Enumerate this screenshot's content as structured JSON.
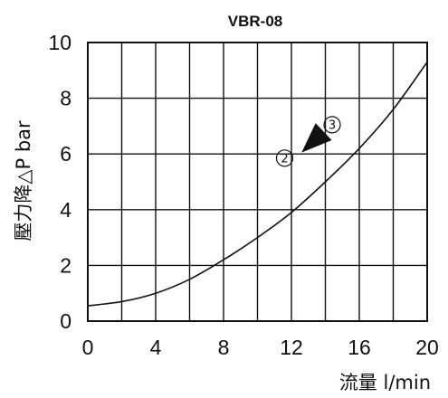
{
  "chart_data": {
    "type": "line",
    "title": "VBR-08",
    "xlabel": "流量 l/min",
    "ylabel": "壓力降△P bar",
    "xlim": [
      0,
      20
    ],
    "ylim": [
      0,
      10
    ],
    "x_ticks": [
      0,
      4,
      8,
      12,
      16,
      20
    ],
    "y_ticks": [
      0,
      2,
      4,
      6,
      8,
      10
    ],
    "x_tick_labels": [
      "0",
      "4",
      "8",
      "12",
      "16",
      "20"
    ],
    "y_tick_labels": [
      "0",
      "2",
      "4",
      "6",
      "8",
      "10"
    ],
    "grid": true,
    "series": [
      {
        "x": [
          0,
          2,
          4,
          6,
          8,
          10,
          12,
          14,
          16,
          18,
          20
        ],
        "y": [
          0.55,
          0.7,
          1.0,
          1.5,
          2.2,
          3.0,
          3.9,
          5.0,
          6.2,
          7.6,
          9.3
        ]
      }
    ],
    "annotations": [
      {
        "text": "2",
        "x": 11.6,
        "y": 5.85
      },
      {
        "text": "3",
        "x": 14.4,
        "y": 7.05
      }
    ],
    "arrow": {
      "from": [
        12.6,
        6.05
      ],
      "to": [
        13.9,
        6.8
      ]
    },
    "line_color": "#111111"
  }
}
